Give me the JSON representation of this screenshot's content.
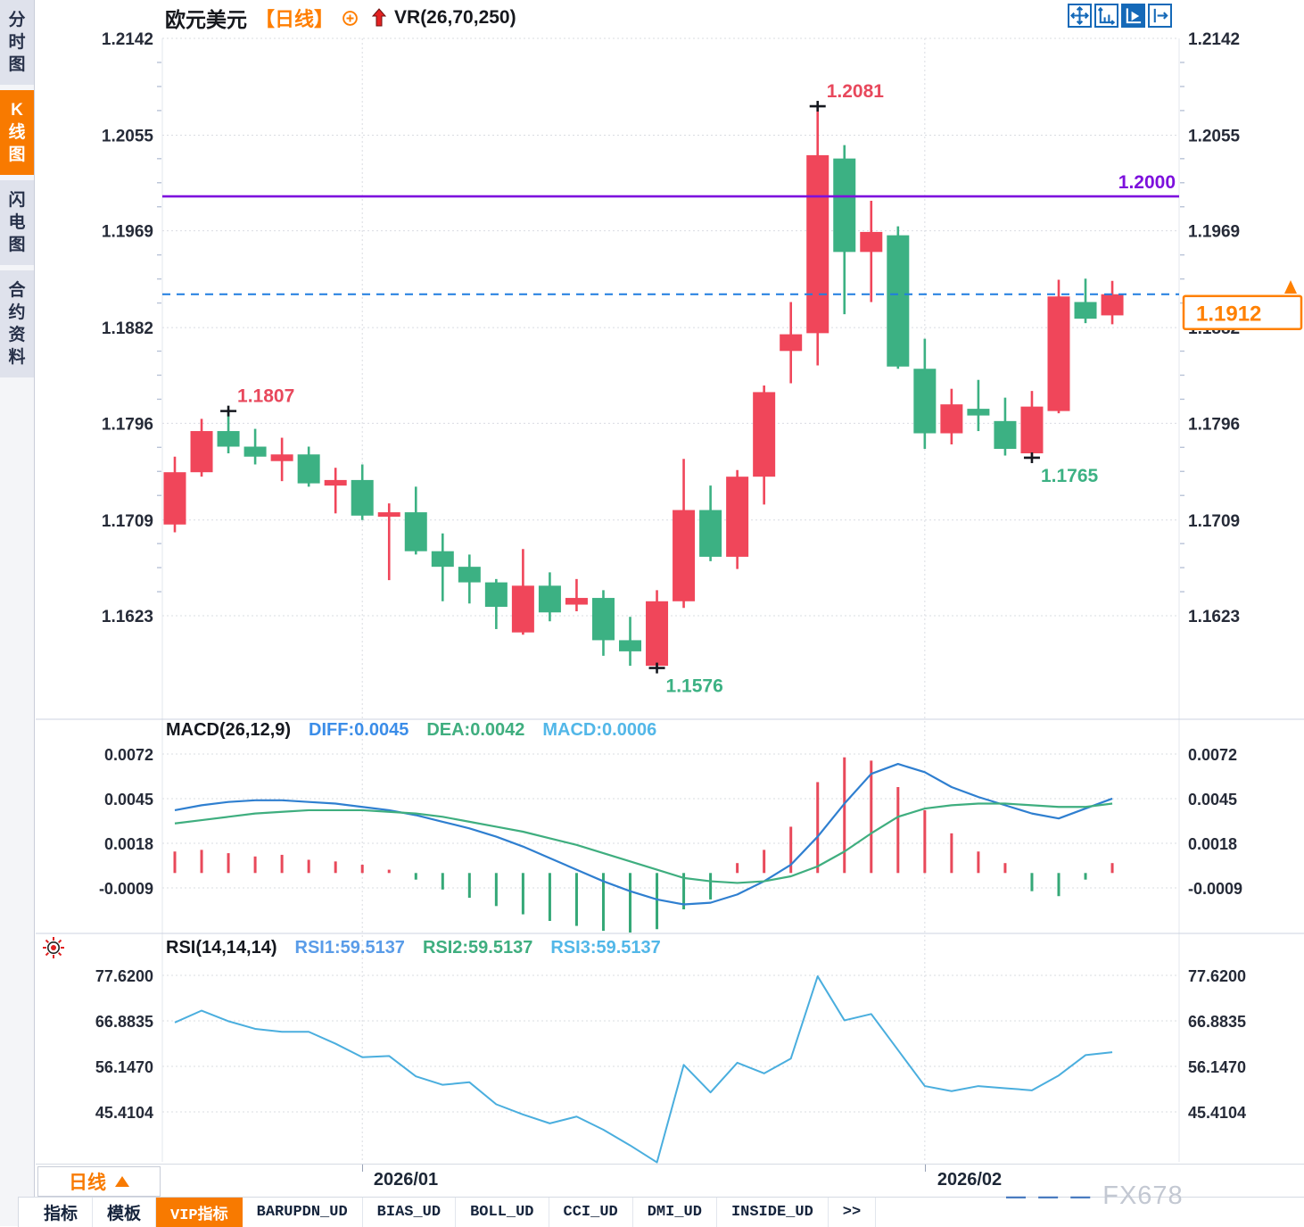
{
  "sidebar": {
    "tabs": [
      {
        "label": "分时图",
        "active": false
      },
      {
        "label": "K线图",
        "active": true
      },
      {
        "label": "闪电图",
        "active": false
      },
      {
        "label": "合约资料",
        "active": false
      }
    ]
  },
  "header": {
    "symbol": "欧元美元",
    "period_tag": "【日线】",
    "indicator": "VR(26,70,250)"
  },
  "toolbar": {
    "icons": [
      "pan-icon",
      "axis-scale-icon",
      "axis-play-icon",
      "pop-out-icon"
    ],
    "active_icon": "axis-play-icon"
  },
  "chart_data": {
    "type": "candlestick",
    "title": "欧元美元 日线",
    "price_axis": {
      "labels": [
        "1.2142",
        "1.2055",
        "1.1969",
        "1.1882",
        "1.1796",
        "1.1709",
        "1.1623"
      ],
      "values": [
        1.2142,
        1.2055,
        1.1969,
        1.1882,
        1.1796,
        1.1709,
        1.1623
      ]
    },
    "x_axis": {
      "labels": [
        "2026/01",
        "2026/02"
      ],
      "month_tick_candles": [
        8,
        29
      ]
    },
    "candles": [
      [
        1.1705,
        1.1766,
        1.1698,
        1.1752
      ],
      [
        1.1752,
        1.18,
        1.1748,
        1.1789
      ],
      [
        1.1789,
        1.1807,
        1.1769,
        1.1775
      ],
      [
        1.1775,
        1.1791,
        1.1759,
        1.1766
      ],
      [
        1.1762,
        1.1783,
        1.1744,
        1.1768
      ],
      [
        1.1768,
        1.1775,
        1.1739,
        1.1742
      ],
      [
        1.174,
        1.1756,
        1.1715,
        1.1745
      ],
      [
        1.1745,
        1.1759,
        1.1709,
        1.1713
      ],
      [
        1.1712,
        1.1724,
        1.1655,
        1.1716
      ],
      [
        1.1716,
        1.1739,
        1.1678,
        1.1681
      ],
      [
        1.1681,
        1.1697,
        1.1636,
        1.1667
      ],
      [
        1.1667,
        1.1678,
        1.1634,
        1.1653
      ],
      [
        1.1653,
        1.1656,
        1.1611,
        1.1631
      ],
      [
        1.1608,
        1.1683,
        1.1606,
        1.165
      ],
      [
        1.165,
        1.1662,
        1.1618,
        1.1626
      ],
      [
        1.1633,
        1.1656,
        1.1627,
        1.1639
      ],
      [
        1.1639,
        1.1646,
        1.1587,
        1.1601
      ],
      [
        1.1601,
        1.1622,
        1.1578,
        1.1591
      ],
      [
        1.1578,
        1.1646,
        1.1576,
        1.1636
      ],
      [
        1.1636,
        1.1764,
        1.163,
        1.1718
      ],
      [
        1.1718,
        1.174,
        1.1672,
        1.1676
      ],
      [
        1.1676,
        1.1754,
        1.1665,
        1.1748
      ],
      [
        1.1748,
        1.183,
        1.1723,
        1.1824
      ],
      [
        1.1861,
        1.1905,
        1.1832,
        1.1876
      ],
      [
        1.1877,
        1.2081,
        1.1848,
        1.2037
      ],
      [
        1.2034,
        1.2046,
        1.1894,
        1.195
      ],
      [
        1.195,
        1.1996,
        1.1905,
        1.1968
      ],
      [
        1.1965,
        1.1973,
        1.1845,
        1.1847
      ],
      [
        1.1845,
        1.1872,
        1.1773,
        1.1787
      ],
      [
        1.1787,
        1.1827,
        1.1777,
        1.1813
      ],
      [
        1.1809,
        1.1835,
        1.1789,
        1.1803
      ],
      [
        1.1798,
        1.1819,
        1.1767,
        1.1773
      ],
      [
        1.1769,
        1.1825,
        1.1765,
        1.1811
      ],
      [
        1.1807,
        1.1925,
        1.1805,
        1.191
      ],
      [
        1.1905,
        1.1926,
        1.1886,
        1.189
      ],
      [
        1.1893,
        1.1924,
        1.1885,
        1.1912
      ]
    ],
    "annotations": [
      {
        "candle": 3,
        "point": "high",
        "label": "1.1807"
      },
      {
        "candle": 25,
        "point": "high",
        "label": "1.2081"
      },
      {
        "candle": 19,
        "point": "low",
        "label": "1.1576"
      },
      {
        "candle": 33,
        "point": "low",
        "label": "1.1765"
      }
    ],
    "hline": {
      "value": 1.2,
      "label": "1.2000"
    },
    "last_price": {
      "value": 1.1912,
      "label": "1.1912"
    },
    "colors": {
      "up": "#f0465a",
      "down": "#3cb183",
      "hline": "#7d10dd",
      "last_price_line": "#1f7de0",
      "accent_orange": "#ff8000"
    }
  },
  "macd": {
    "title": "MACD(26,12,9)",
    "values": [
      {
        "label": "DIFF:0.0045",
        "color": "#3b8de8"
      },
      {
        "label": "DEA:0.0042",
        "color": "#3fae7f"
      },
      {
        "label": "MACD:0.0006",
        "color": "#52b7e8"
      }
    ],
    "axis_labels": [
      "0.0072",
      "0.0045",
      "0.0018",
      "-0.0009"
    ],
    "axis_values": [
      0.0072,
      0.0045,
      0.0018,
      -0.0009
    ],
    "diff": [
      0.0038,
      0.0041,
      0.0043,
      0.0044,
      0.0044,
      0.0043,
      0.0042,
      0.004,
      0.0038,
      0.0035,
      0.0031,
      0.0027,
      0.0022,
      0.0016,
      0.0009,
      0.0002,
      -0.0005,
      -0.0011,
      -0.0016,
      -0.0019,
      -0.0018,
      -0.0013,
      -0.0005,
      0.0005,
      0.0022,
      0.0042,
      0.006,
      0.0066,
      0.0061,
      0.0052,
      0.0046,
      0.0041,
      0.0036,
      0.0033,
      0.0039,
      0.0045
    ],
    "dea": [
      0.003,
      0.0032,
      0.0034,
      0.0036,
      0.0037,
      0.0038,
      0.0038,
      0.0038,
      0.0037,
      0.0036,
      0.0034,
      0.0031,
      0.0028,
      0.0025,
      0.0021,
      0.0017,
      0.0012,
      0.0007,
      0.0002,
      -0.0003,
      -0.0005,
      -0.0006,
      -0.0005,
      -0.0002,
      0.0004,
      0.0013,
      0.0024,
      0.0034,
      0.0039,
      0.0041,
      0.0042,
      0.0042,
      0.0041,
      0.004,
      0.004,
      0.0042
    ],
    "hist": [
      0.0013,
      0.0014,
      0.0012,
      0.001,
      0.0011,
      0.0008,
      0.0007,
      0.0005,
      0.0002,
      -0.0004,
      -0.001,
      -0.0015,
      -0.002,
      -0.0025,
      -0.0029,
      -0.0032,
      -0.0035,
      -0.0036,
      -0.0034,
      -0.0022,
      -0.0016,
      0.0006,
      0.0014,
      0.0028,
      0.0055,
      0.007,
      0.0068,
      0.0052,
      0.0038,
      0.0024,
      0.0013,
      0.0006,
      -0.0011,
      -0.0014,
      -0.0004,
      0.0006
    ]
  },
  "rsi": {
    "title": "RSI(14,14,14)",
    "values": [
      {
        "label": "RSI1:59.5137",
        "color": "#5a9ce8"
      },
      {
        "label": "RSI2:59.5137",
        "color": "#3fae7f"
      },
      {
        "label": "RSI3:59.5137",
        "color": "#52b7e8"
      }
    ],
    "axis_labels": [
      "77.6200",
      "66.8835",
      "56.1470",
      "45.4104"
    ],
    "axis_values": [
      77.62,
      66.8835,
      56.147,
      45.4104
    ],
    "line": [
      66.5,
      69.3,
      66.8,
      65.0,
      64.3,
      64.3,
      61.5,
      58.3,
      58.6,
      53.8,
      51.8,
      52.4,
      47.2,
      44.8,
      42.7,
      44.3,
      41.2,
      37.5,
      33.5,
      56.5,
      50.0,
      57.0,
      54.5,
      58.0,
      77.4,
      67.0,
      68.5,
      60.0,
      51.5,
      50.3,
      51.5,
      51.0,
      50.5,
      54.0,
      58.8,
      59.5
    ]
  },
  "bottom": {
    "period_selector": {
      "label": "日线"
    },
    "month_labels": [
      "2026/01",
      "2026/02"
    ],
    "tabs": [
      {
        "label": "指标",
        "active": false
      },
      {
        "label": "模板",
        "active": false
      },
      {
        "label": "VIP指标",
        "active": true
      },
      {
        "label": "BARUPDN_UD",
        "active": false
      },
      {
        "label": "BIAS_UD",
        "active": false
      },
      {
        "label": "BOLL_UD",
        "active": false
      },
      {
        "label": "CCI_UD",
        "active": false
      },
      {
        "label": "DMI_UD",
        "active": false
      },
      {
        "label": "INSIDE_UD",
        "active": false
      },
      {
        "label": ">>",
        "active": false
      }
    ]
  },
  "watermark": {
    "dashes": "— — —",
    "text": "FX678"
  }
}
